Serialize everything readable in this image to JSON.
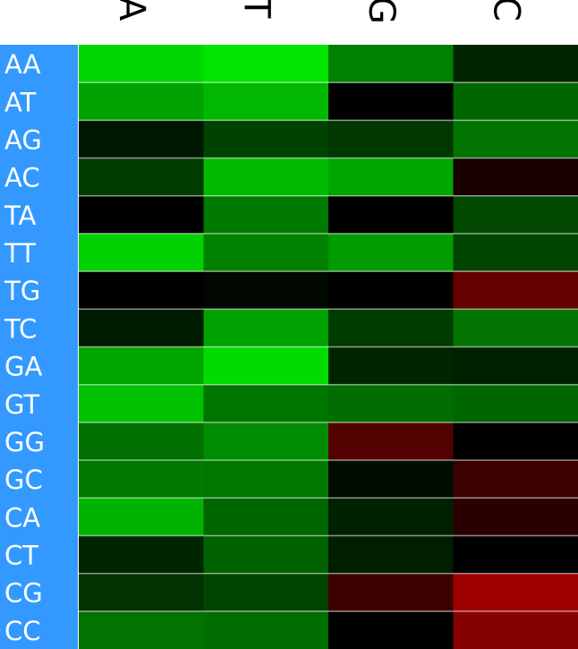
{
  "chart_data": {
    "type": "heatmap",
    "columns": [
      "A",
      "T",
      "G",
      "C"
    ],
    "rows": [
      "AA",
      "AT",
      "AG",
      "AC",
      "TA",
      "TT",
      "TG",
      "TC",
      "GA",
      "GT",
      "GG",
      "GC",
      "CA",
      "CT",
      "CG",
      "CC"
    ],
    "values": [
      [
        0.84,
        0.9,
        0.5,
        0.14
      ],
      [
        0.64,
        0.72,
        0.0,
        0.4
      ],
      [
        0.09,
        0.26,
        0.22,
        0.45
      ],
      [
        0.23,
        0.73,
        0.65,
        -0.1
      ],
      [
        0.0,
        0.48,
        0.0,
        0.28
      ],
      [
        0.82,
        0.51,
        0.61,
        0.27
      ],
      [
        0.0,
        0.03,
        0.0,
        -0.4
      ],
      [
        0.11,
        0.63,
        0.23,
        0.45
      ],
      [
        0.65,
        0.86,
        0.15,
        0.13
      ],
      [
        0.76,
        0.46,
        0.43,
        0.4
      ],
      [
        0.44,
        0.55,
        -0.32,
        0.0
      ],
      [
        0.48,
        0.47,
        0.05,
        -0.24
      ],
      [
        0.7,
        0.4,
        0.13,
        -0.17
      ],
      [
        0.15,
        0.38,
        0.12,
        0.0
      ],
      [
        0.2,
        0.27,
        -0.24,
        -0.62
      ],
      [
        0.45,
        0.43,
        0.0,
        -0.52
      ]
    ],
    "color_scale": {
      "min": -1,
      "max": 1,
      "low_color": "#ff0000",
      "mid_color": "#000000",
      "high_color": "#00ff00"
    },
    "label_background": "#3399ff",
    "grid": false,
    "legend": "none"
  }
}
